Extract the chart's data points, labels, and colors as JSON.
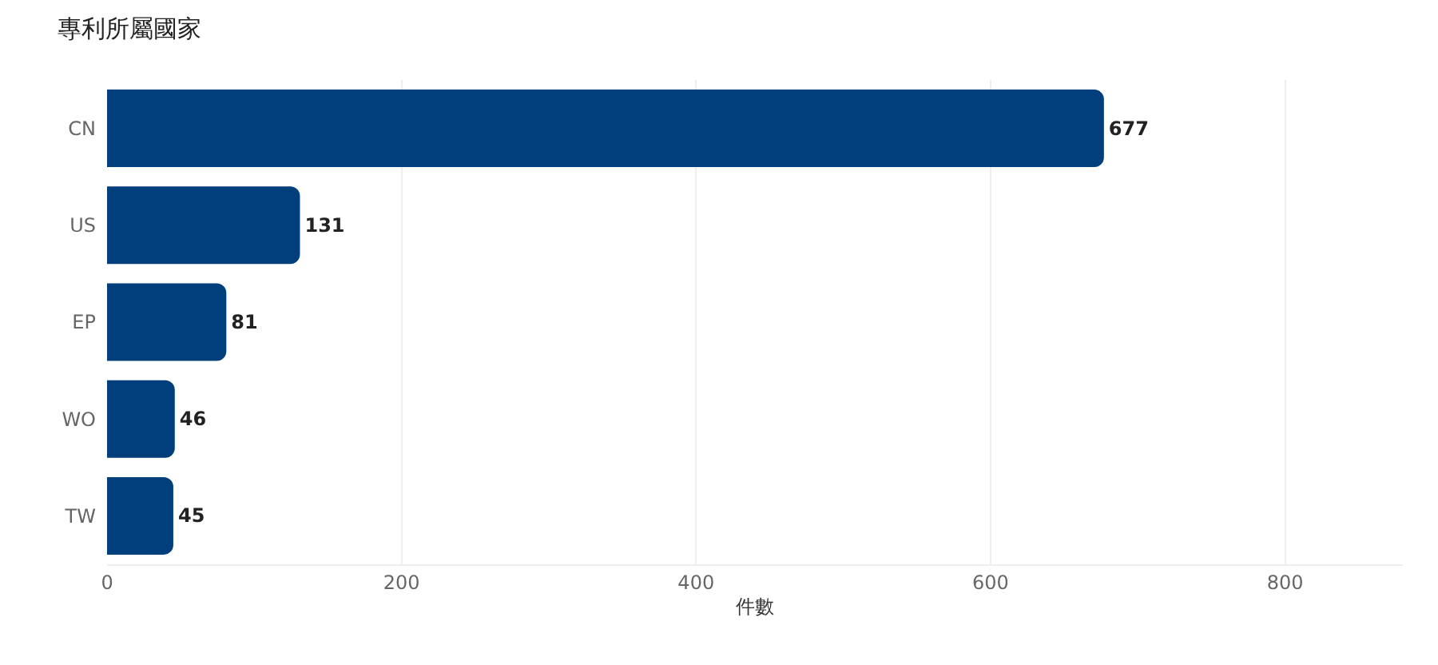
{
  "chart_data": {
    "type": "bar",
    "title": "專利所屬國家",
    "xlabel": "件數",
    "orientation": "horizontal",
    "categories": [
      "CN",
      "US",
      "EP",
      "WO",
      "TW"
    ],
    "values": [
      677,
      131,
      81,
      46,
      45
    ],
    "color": "#003f7b",
    "xlim": [
      0,
      880
    ],
    "xticks": [
      0,
      200,
      400,
      600,
      800
    ],
    "grid": "x",
    "data_labels": true
  }
}
